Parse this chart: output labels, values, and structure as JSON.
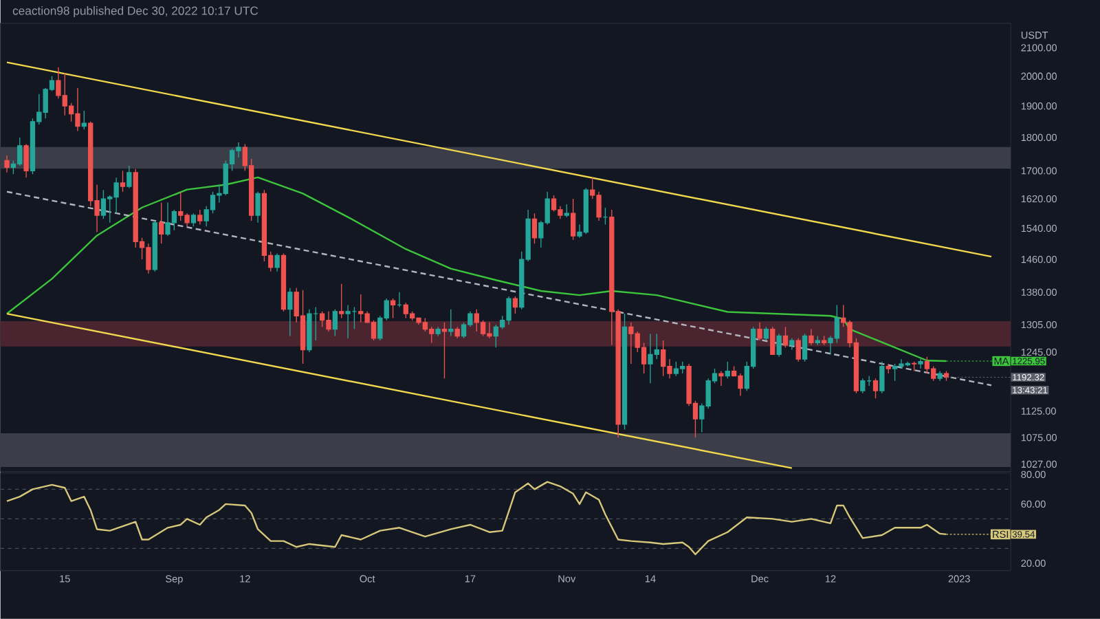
{
  "chart_data": [
    {
      "type": "candlestick",
      "title": "ceaction98 published Dec 30, 2022 10:17 UTC",
      "ylabel": "USDT",
      "log": "y",
      "tick_labels": "y",
      "xlim": [
        "2022-08-05",
        "2023-01-09"
      ],
      "ylim": [
        1014,
        2190
      ],
      "yticks": [
        {
          "value": 2100,
          "label": "2100.00"
        },
        {
          "value": 2000,
          "label": "2000.00"
        },
        {
          "value": 1900,
          "label": "1900.00"
        },
        {
          "value": 1800,
          "label": "1800.00"
        },
        {
          "value": 1700,
          "label": "1700.00"
        },
        {
          "value": 1620,
          "label": "1620.00"
        },
        {
          "value": 1540,
          "label": "1540.00"
        },
        {
          "value": 1460,
          "label": "1460.00"
        },
        {
          "value": 1380,
          "label": "1380.00"
        },
        {
          "value": 1305,
          "label": "1305.00"
        },
        {
          "value": 1245,
          "label": "1245.00"
        },
        {
          "value": 1125,
          "label": "1125.00"
        },
        {
          "value": 1075,
          "label": "1075.00"
        },
        {
          "value": 1027,
          "label": "1027.00"
        }
      ],
      "bands": [
        {
          "axis": "y",
          "from": 1706,
          "to": 1771,
          "color": "#3b3e48"
        },
        {
          "axis": "y",
          "from": 1257,
          "to": 1313,
          "color": "#4a2530"
        },
        {
          "axis": "y",
          "from": 1022,
          "to": 1083,
          "color": "#3b3e48"
        }
      ],
      "x": [
        "2022-08-06",
        "2022-08-07",
        "2022-08-08",
        "2022-08-09",
        "2022-08-10",
        "2022-08-11",
        "2022-08-12",
        "2022-08-13",
        "2022-08-14",
        "2022-08-15",
        "2022-08-16",
        "2022-08-17",
        "2022-08-18",
        "2022-08-19",
        "2022-08-20",
        "2022-08-21",
        "2022-08-22",
        "2022-08-23",
        "2022-08-24",
        "2022-08-25",
        "2022-08-26",
        "2022-08-27",
        "2022-08-28",
        "2022-08-29",
        "2022-08-30",
        "2022-08-31",
        "2022-09-01",
        "2022-09-02",
        "2022-09-03",
        "2022-09-04",
        "2022-09-05",
        "2022-09-06",
        "2022-09-07",
        "2022-09-08",
        "2022-09-09",
        "2022-09-10",
        "2022-09-11",
        "2022-09-12",
        "2022-09-13",
        "2022-09-14",
        "2022-09-15",
        "2022-09-16",
        "2022-09-17",
        "2022-09-18",
        "2022-09-19",
        "2022-09-20",
        "2022-09-21",
        "2022-09-22",
        "2022-09-23",
        "2022-09-24",
        "2022-09-25",
        "2022-09-26",
        "2022-09-27",
        "2022-09-28",
        "2022-09-29",
        "2022-09-30",
        "2022-10-01",
        "2022-10-02",
        "2022-10-03",
        "2022-10-04",
        "2022-10-05",
        "2022-10-06",
        "2022-10-07",
        "2022-10-08",
        "2022-10-09",
        "2022-10-10",
        "2022-10-11",
        "2022-10-12",
        "2022-10-13",
        "2022-10-14",
        "2022-10-15",
        "2022-10-16",
        "2022-10-17",
        "2022-10-18",
        "2022-10-19",
        "2022-10-20",
        "2022-10-21",
        "2022-10-22",
        "2022-10-23",
        "2022-10-24",
        "2022-10-25",
        "2022-10-26",
        "2022-10-27",
        "2022-10-28",
        "2022-10-29",
        "2022-10-30",
        "2022-10-31",
        "2022-11-01",
        "2022-11-02",
        "2022-11-03",
        "2022-11-04",
        "2022-11-05",
        "2022-11-06",
        "2022-11-07",
        "2022-11-08",
        "2022-11-09",
        "2022-11-10",
        "2022-11-11",
        "2022-11-12",
        "2022-11-13",
        "2022-11-14",
        "2022-11-15",
        "2022-11-16",
        "2022-11-17",
        "2022-11-18",
        "2022-11-19",
        "2022-11-20",
        "2022-11-21",
        "2022-11-22",
        "2022-11-23",
        "2022-11-24",
        "2022-11-25",
        "2022-11-26",
        "2022-11-27",
        "2022-11-28",
        "2022-11-29",
        "2022-11-30",
        "2022-12-01",
        "2022-12-02",
        "2022-12-03",
        "2022-12-04",
        "2022-12-05",
        "2022-12-06",
        "2022-12-07",
        "2022-12-08",
        "2022-12-09",
        "2022-12-10",
        "2022-12-11",
        "2022-12-12",
        "2022-12-13",
        "2022-12-14",
        "2022-12-15",
        "2022-12-16",
        "2022-12-17",
        "2022-12-18",
        "2022-12-19",
        "2022-12-20",
        "2022-12-21",
        "2022-12-22",
        "2022-12-23",
        "2022-12-24",
        "2022-12-25",
        "2022-12-26",
        "2022-12-27",
        "2022-12-28",
        "2022-12-29",
        "2022-12-30"
      ],
      "ohlc": [
        [
          1730,
          1745,
          1695,
          1710
        ],
        [
          1710,
          1730,
          1690,
          1720
        ],
        [
          1720,
          1800,
          1715,
          1775
        ],
        [
          1775,
          1780,
          1680,
          1700
        ],
        [
          1700,
          1860,
          1690,
          1850
        ],
        [
          1850,
          1940,
          1840,
          1880
        ],
        [
          1880,
          1960,
          1860,
          1955
        ],
        [
          1955,
          2000,
          1950,
          1985
        ],
        [
          1985,
          2030,
          1925,
          1935
        ],
        [
          1935,
          2010,
          1870,
          1900
        ],
        [
          1900,
          1910,
          1850,
          1875
        ],
        [
          1875,
          1960,
          1820,
          1835
        ],
        [
          1835,
          1885,
          1825,
          1845
        ],
        [
          1845,
          1850,
          1600,
          1615
        ],
        [
          1615,
          1660,
          1530,
          1575
        ],
        [
          1575,
          1645,
          1565,
          1620
        ],
        [
          1620,
          1630,
          1555,
          1625
        ],
        [
          1625,
          1680,
          1580,
          1665
        ],
        [
          1665,
          1700,
          1640,
          1655
        ],
        [
          1655,
          1715,
          1650,
          1695
        ],
        [
          1695,
          1705,
          1490,
          1505
        ],
        [
          1505,
          1515,
          1460,
          1490
        ],
        [
          1490,
          1500,
          1425,
          1435
        ],
        [
          1435,
          1560,
          1430,
          1555
        ],
        [
          1555,
          1610,
          1500,
          1525
        ],
        [
          1525,
          1610,
          1520,
          1555
        ],
        [
          1555,
          1590,
          1535,
          1585
        ],
        [
          1585,
          1640,
          1560,
          1575
        ],
        [
          1575,
          1580,
          1545,
          1555
        ],
        [
          1555,
          1580,
          1545,
          1575
        ],
        [
          1575,
          1590,
          1550,
          1560
        ],
        [
          1560,
          1600,
          1545,
          1590
        ],
        [
          1590,
          1640,
          1580,
          1630
        ],
        [
          1630,
          1660,
          1610,
          1635
        ],
        [
          1635,
          1730,
          1630,
          1720
        ],
        [
          1720,
          1765,
          1700,
          1760
        ],
        [
          1760,
          1785,
          1740,
          1770
        ],
        [
          1770,
          1780,
          1700,
          1715
        ],
        [
          1715,
          1735,
          1560,
          1575
        ],
        [
          1575,
          1640,
          1555,
          1635
        ],
        [
          1635,
          1645,
          1455,
          1470
        ],
        [
          1470,
          1480,
          1430,
          1440
        ],
        [
          1440,
          1475,
          1430,
          1470
        ],
        [
          1470,
          1475,
          1335,
          1340
        ],
        [
          1340,
          1390,
          1280,
          1380
        ],
        [
          1380,
          1390,
          1310,
          1325
        ],
        [
          1325,
          1385,
          1220,
          1250
        ],
        [
          1250,
          1340,
          1245,
          1330
        ],
        [
          1330,
          1345,
          1270,
          1330
        ],
        [
          1330,
          1335,
          1300,
          1315
        ],
        [
          1315,
          1335,
          1290,
          1295
        ],
        [
          1295,
          1340,
          1280,
          1335
        ],
        [
          1335,
          1400,
          1320,
          1330
        ],
        [
          1330,
          1350,
          1275,
          1335
        ],
        [
          1335,
          1345,
          1295,
          1335
        ],
        [
          1335,
          1375,
          1310,
          1330
        ],
        [
          1330,
          1335,
          1310,
          1310
        ],
        [
          1310,
          1315,
          1270,
          1275
        ],
        [
          1275,
          1325,
          1270,
          1320
        ],
        [
          1320,
          1365,
          1315,
          1360
        ],
        [
          1360,
          1365,
          1320,
          1350
        ],
        [
          1350,
          1380,
          1345,
          1350
        ],
        [
          1350,
          1355,
          1320,
          1330
        ],
        [
          1330,
          1335,
          1315,
          1320
        ],
        [
          1320,
          1320,
          1305,
          1310
        ],
        [
          1310,
          1320,
          1290,
          1295
        ],
        [
          1295,
          1300,
          1265,
          1285
        ],
        [
          1285,
          1300,
          1280,
          1295
        ],
        [
          1295,
          1310,
          1190,
          1290
        ],
        [
          1290,
          1340,
          1280,
          1295
        ],
        [
          1295,
          1300,
          1275,
          1280
        ],
        [
          1280,
          1310,
          1275,
          1305
        ],
        [
          1305,
          1335,
          1300,
          1330
        ],
        [
          1330,
          1340,
          1290,
          1310
        ],
        [
          1310,
          1315,
          1280,
          1285
        ],
        [
          1285,
          1310,
          1275,
          1280
        ],
        [
          1280,
          1305,
          1255,
          1300
        ],
        [
          1300,
          1325,
          1295,
          1315
        ],
        [
          1315,
          1370,
          1305,
          1365
        ],
        [
          1365,
          1370,
          1330,
          1345
        ],
        [
          1345,
          1480,
          1340,
          1460
        ],
        [
          1460,
          1590,
          1455,
          1565
        ],
        [
          1565,
          1580,
          1500,
          1515
        ],
        [
          1515,
          1560,
          1490,
          1555
        ],
        [
          1555,
          1640,
          1550,
          1620
        ],
        [
          1620,
          1630,
          1585,
          1590
        ],
        [
          1590,
          1600,
          1565,
          1575
        ],
        [
          1575,
          1605,
          1570,
          1580
        ],
        [
          1580,
          1620,
          1510,
          1520
        ],
        [
          1520,
          1550,
          1515,
          1530
        ],
        [
          1530,
          1650,
          1525,
          1645
        ],
        [
          1645,
          1680,
          1620,
          1630
        ],
        [
          1630,
          1640,
          1560,
          1570
        ],
        [
          1570,
          1595,
          1550,
          1570
        ],
        [
          1570,
          1590,
          1260,
          1335
        ],
        [
          1335,
          1340,
          1075,
          1100
        ],
        [
          1100,
          1330,
          1090,
          1300
        ],
        [
          1300,
          1310,
          1220,
          1285
        ],
        [
          1285,
          1290,
          1245,
          1255
        ],
        [
          1255,
          1265,
          1200,
          1220
        ],
        [
          1220,
          1285,
          1180,
          1240
        ],
        [
          1240,
          1285,
          1230,
          1250
        ],
        [
          1250,
          1270,
          1195,
          1215
        ],
        [
          1215,
          1230,
          1190,
          1200
        ],
        [
          1200,
          1225,
          1195,
          1210
        ],
        [
          1210,
          1225,
          1200,
          1215
        ],
        [
          1215,
          1220,
          1135,
          1140
        ],
        [
          1140,
          1145,
          1075,
          1110
        ],
        [
          1110,
          1140,
          1085,
          1135
        ],
        [
          1135,
          1190,
          1130,
          1185
        ],
        [
          1185,
          1210,
          1180,
          1200
        ],
        [
          1200,
          1205,
          1175,
          1195
        ],
        [
          1195,
          1225,
          1190,
          1205
        ],
        [
          1205,
          1215,
          1195,
          1195
        ],
        [
          1195,
          1200,
          1155,
          1170
        ],
        [
          1170,
          1225,
          1165,
          1215
        ],
        [
          1215,
          1300,
          1210,
          1295
        ],
        [
          1295,
          1310,
          1270,
          1275
        ],
        [
          1275,
          1300,
          1270,
          1295
        ],
        [
          1295,
          1300,
          1240,
          1240
        ],
        [
          1240,
          1285,
          1235,
          1280
        ],
        [
          1280,
          1300,
          1255,
          1260
        ],
        [
          1260,
          1275,
          1250,
          1270
        ],
        [
          1270,
          1275,
          1225,
          1230
        ],
        [
          1230,
          1285,
          1225,
          1280
        ],
        [
          1280,
          1295,
          1260,
          1265
        ],
        [
          1265,
          1280,
          1260,
          1270
        ],
        [
          1270,
          1280,
          1260,
          1265
        ],
        [
          1265,
          1280,
          1240,
          1275
        ],
        [
          1275,
          1350,
          1265,
          1320
        ],
        [
          1320,
          1350,
          1300,
          1310
        ],
        [
          1310,
          1315,
          1255,
          1265
        ],
        [
          1265,
          1275,
          1160,
          1165
        ],
        [
          1165,
          1190,
          1160,
          1185
        ],
        [
          1185,
          1195,
          1175,
          1185
        ],
        [
          1185,
          1190,
          1150,
          1165
        ],
        [
          1165,
          1225,
          1160,
          1215
        ],
        [
          1215,
          1220,
          1200,
          1210
        ],
        [
          1210,
          1220,
          1185,
          1215
        ],
        [
          1215,
          1230,
          1210,
          1220
        ],
        [
          1218,
          1225,
          1215,
          1221
        ],
        [
          1221,
          1225,
          1205,
          1220
        ],
        [
          1220,
          1230,
          1210,
          1225
        ],
        [
          1225,
          1235,
          1200,
          1210
        ],
        [
          1210,
          1215,
          1185,
          1190
        ],
        [
          1190,
          1205,
          1185,
          1200
        ],
        [
          1200,
          1205,
          1185,
          1192.32
        ]
      ],
      "series": [
        {
          "name": "MA",
          "type": "line",
          "color": "#3cc43c",
          "x": [
            "2022-08-06",
            "2022-08-13",
            "2022-08-20",
            "2022-08-27",
            "2022-09-03",
            "2022-09-09",
            "2022-09-14",
            "2022-09-21",
            "2022-09-28",
            "2022-10-07",
            "2022-10-14",
            "2022-10-21",
            "2022-10-28",
            "2022-11-03",
            "2022-11-08",
            "2022-11-15",
            "2022-11-26",
            "2022-12-12",
            "2022-12-14",
            "2022-12-15",
            "2022-12-27",
            "2022-12-30"
          ],
          "values": [
            1330,
            1412,
            1521,
            1596,
            1646,
            1660,
            1681,
            1635,
            1570,
            1486,
            1437,
            1409,
            1383,
            1373,
            1383,
            1373,
            1334,
            1325,
            1318,
            1295,
            1227,
            1225.95
          ]
        },
        {
          "type": "line",
          "color": "#f2d84e",
          "x": [
            "2022-08-06",
            "2023-01-06"
          ],
          "values": [
            2048,
            1467
          ]
        },
        {
          "type": "line",
          "color": "#f2d84e",
          "x": [
            "2022-08-06",
            "2022-12-06"
          ],
          "values": [
            1330,
            1020
          ]
        },
        {
          "type": "line",
          "color": "#b2b5be",
          "line_style": "dashed",
          "x": [
            "2022-08-06",
            "2023-01-06"
          ],
          "values": [
            1640,
            1176
          ]
        }
      ],
      "annotations": [
        {
          "text": "1225.95",
          "x": "2022-12-30",
          "y": 1225.95
        },
        {
          "text": "1192.32",
          "x": "2022-12-30",
          "y": 1192.32
        },
        "13:43:21"
      ]
    },
    {
      "type": "line",
      "xlim": [
        "2022-08-05",
        "2023-01-09"
      ],
      "ylim": [
        15,
        81
      ],
      "xticks": [
        {
          "value": "2022-08-15",
          "label": "15"
        },
        {
          "value": "2022-09-01",
          "label": "Sep"
        },
        {
          "value": "2022-09-12",
          "label": "12"
        },
        {
          "value": "2022-10-01",
          "label": "Oct"
        },
        {
          "value": "2022-10-17",
          "label": "17"
        },
        {
          "value": "2022-11-01",
          "label": "Nov"
        },
        {
          "value": "2022-11-14",
          "label": "14"
        },
        {
          "value": "2022-12-01",
          "label": "Dec"
        },
        {
          "value": "2022-12-12",
          "label": "12"
        },
        {
          "value": "2023-01-01",
          "label": "2023"
        }
      ],
      "yticks": [
        {
          "value": 20,
          "label": "20.00"
        },
        {
          "value": 60,
          "label": "60.00"
        },
        {
          "value": 80,
          "label": "80.00"
        }
      ],
      "ref_lines": [
        {
          "axis": "y",
          "value": 70,
          "color": "#4a4e5a",
          "line_style": "dashed"
        },
        {
          "axis": "y",
          "value": 50,
          "color": "#4a4e5a",
          "line_style": "dashed"
        },
        {
          "axis": "y",
          "value": 30,
          "color": "#4a4e5a",
          "line_style": "dashed"
        }
      ],
      "series": [
        {
          "name": "RSI",
          "color": "#d6c77a",
          "x": [
            "2022-08-06",
            "2022-08-08",
            "2022-08-10",
            "2022-08-13",
            "2022-08-15",
            "2022-08-16",
            "2022-08-18",
            "2022-08-19",
            "2022-08-20",
            "2022-08-22",
            "2022-08-26",
            "2022-08-27",
            "2022-08-28",
            "2022-08-31",
            "2022-09-02",
            "2022-09-03",
            "2022-09-05",
            "2022-09-06",
            "2022-09-08",
            "2022-09-09",
            "2022-09-12",
            "2022-09-13",
            "2022-09-14",
            "2022-09-16",
            "2022-09-18",
            "2022-09-20",
            "2022-09-22",
            "2022-09-26",
            "2022-09-27",
            "2022-09-30",
            "2022-10-03",
            "2022-10-06",
            "2022-10-10",
            "2022-10-14",
            "2022-10-17",
            "2022-10-20",
            "2022-10-22",
            "2022-10-24",
            "2022-10-26",
            "2022-10-27",
            "2022-10-29",
            "2022-10-31",
            "2022-11-02",
            "2022-11-03",
            "2022-11-04",
            "2022-11-06",
            "2022-11-07",
            "2022-11-09",
            "2022-11-11",
            "2022-11-14",
            "2022-11-16",
            "2022-11-19",
            "2022-11-20",
            "2022-11-21",
            "2022-11-23",
            "2022-11-26",
            "2022-11-29",
            "2022-12-03",
            "2022-12-06",
            "2022-12-09",
            "2022-12-12",
            "2022-12-13",
            "2022-12-14",
            "2022-12-15",
            "2022-12-17",
            "2022-12-20",
            "2022-12-22",
            "2022-12-26",
            "2022-12-27",
            "2022-12-29",
            "2022-12-30"
          ],
          "values": [
            62,
            65,
            70,
            73,
            71,
            62,
            65,
            56,
            43,
            42,
            48,
            36,
            36,
            44,
            46,
            50,
            46,
            51,
            56,
            60,
            59,
            54,
            43,
            35,
            35,
            31,
            33,
            31,
            39,
            36,
            42,
            44,
            38,
            43,
            46,
            41,
            42,
            68,
            74,
            70,
            75,
            72,
            67,
            60,
            68,
            63,
            53,
            36,
            35,
            34,
            33,
            34,
            31,
            26,
            35,
            41,
            51,
            50,
            48,
            50,
            47,
            59,
            59,
            51,
            37,
            39,
            44,
            44,
            46,
            40,
            39.54
          ]
        }
      ],
      "annotations": [
        {
          "text": "39.54",
          "x": "2022-12-30",
          "y": 39.54
        }
      ]
    }
  ]
}
